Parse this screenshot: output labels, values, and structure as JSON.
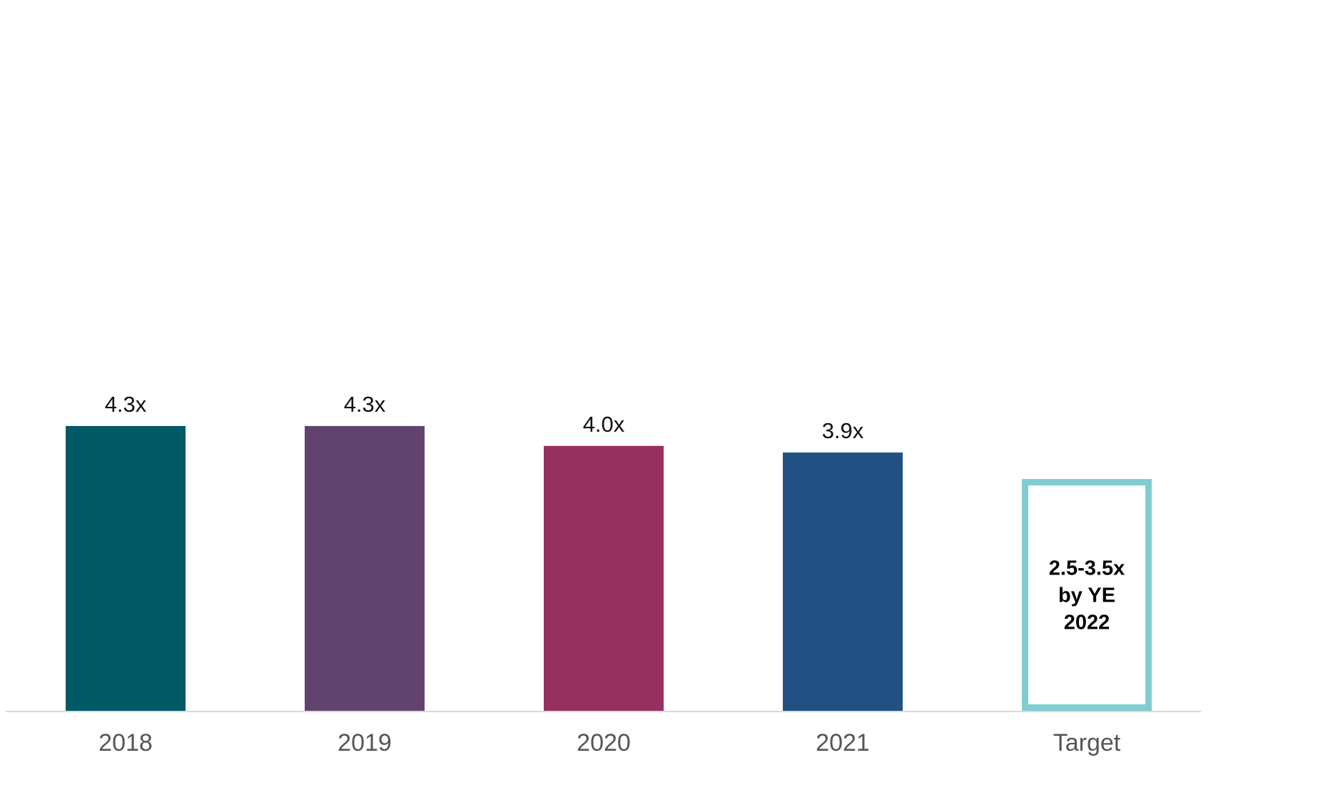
{
  "chart_data": {
    "type": "bar",
    "categories": [
      "2018",
      "2019",
      "2020",
      "2021",
      "Target"
    ],
    "values": [
      4.3,
      4.3,
      4.0,
      3.9,
      null
    ],
    "value_labels": [
      "4.3x",
      "4.3x",
      "4.0x",
      "3.9x",
      ""
    ],
    "colors": [
      "#005A66",
      "#624370",
      "#96305E",
      "#1F5282",
      "#FFFFFF"
    ],
    "target": {
      "range": [
        2.5,
        3.5
      ],
      "outline_color": "#7FCDD1",
      "lines": [
        "2.5-3.5x",
        "by YE",
        "2022"
      ]
    },
    "title": "",
    "xlabel": "",
    "ylabel": "",
    "ylim": [
      0,
      11.1
    ],
    "grid": false,
    "legend": "none"
  }
}
